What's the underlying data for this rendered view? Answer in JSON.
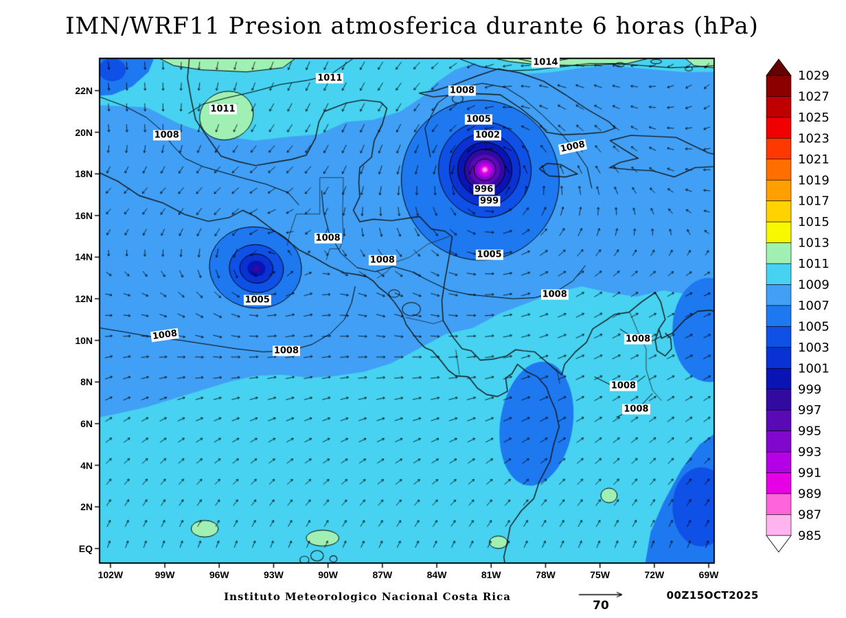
{
  "title": "IMN/WRF11 Presion atmosferica durante 6 horas (hPa)",
  "footer": {
    "institution": "Instituto Meteorologico Nacional Costa Rica",
    "wind_reference_label": "70",
    "valid_time": "00Z15OCT2025"
  },
  "axes": {
    "lat_ticks": [
      {
        "label": "EQ",
        "deg": 0
      },
      {
        "label": "2N",
        "deg": 2
      },
      {
        "label": "4N",
        "deg": 4
      },
      {
        "label": "6N",
        "deg": 6
      },
      {
        "label": "8N",
        "deg": 8
      },
      {
        "label": "10N",
        "deg": 10
      },
      {
        "label": "12N",
        "deg": 12
      },
      {
        "label": "14N",
        "deg": 14
      },
      {
        "label": "16N",
        "deg": 16
      },
      {
        "label": "18N",
        "deg": 18
      },
      {
        "label": "20N",
        "deg": 20
      },
      {
        "label": "22N",
        "deg": 22
      }
    ],
    "lon_ticks": [
      {
        "label": "102W",
        "deg": -102
      },
      {
        "label": "99W",
        "deg": -99
      },
      {
        "label": "96W",
        "deg": -96
      },
      {
        "label": "93W",
        "deg": -93
      },
      {
        "label": "90W",
        "deg": -90
      },
      {
        "label": "87W",
        "deg": -87
      },
      {
        "label": "84W",
        "deg": -84
      },
      {
        "label": "81W",
        "deg": -81
      },
      {
        "label": "78W",
        "deg": -78
      },
      {
        "label": "75W",
        "deg": -75
      },
      {
        "label": "72W",
        "deg": -72
      },
      {
        "label": "69W",
        "deg": -69
      }
    ]
  },
  "colorbar": {
    "units": "hPa",
    "levels": [
      1029,
      1027,
      1025,
      1023,
      1021,
      1019,
      1017,
      1015,
      1013,
      1011,
      1009,
      1007,
      1005,
      1003,
      1001,
      999,
      997,
      995,
      993,
      991,
      989,
      987,
      985
    ],
    "cell_colors_top_to_bottom": [
      "#8c0000",
      "#c00000",
      "#f00000",
      "#ff3800",
      "#ff6e00",
      "#ffa000",
      "#ffd200",
      "#f8f800",
      "#a0f0b4",
      "#46d2f0",
      "#41a0f5",
      "#1e78f0",
      "#0f50e6",
      "#0a32d2",
      "#0a14b4",
      "#320aa0",
      "#5a0ab4",
      "#8207cd",
      "#b400e6",
      "#e600e6",
      "#ff64dc",
      "#ffb4f0"
    ],
    "over_color": "#640000",
    "under_color": "#ffffff"
  },
  "chart_data": {
    "type": "heatmap",
    "title": "IMN/WRF11 Presion atmosferica durante 6 horas (hPa)",
    "variable": "Presion atmosferica",
    "units": "hPa",
    "valid_time": "00Z15OCT2025",
    "lon_range_deg_west": [
      102.6,
      68.7
    ],
    "lat_range_deg_north": [
      -0.7,
      23.55
    ],
    "shade_interval_hpa": 2,
    "shade_range_hpa": [
      985,
      1029
    ],
    "contour_interval_hpa": 3,
    "wind_reference_value": 70,
    "pressure_systems": [
      {
        "name": "hurricane-low-caribbean",
        "lon_w": 81.35,
        "lat_n": 18.2,
        "min_pressure_hpa": 986,
        "labeled_contours": [
          996,
          999,
          1002,
          1005,
          1008
        ]
      },
      {
        "name": "pacific-low",
        "lon_w": 93.95,
        "lat_n": 13.45,
        "min_pressure_hpa": 998,
        "labeled_contours": [
          1005,
          1008
        ]
      }
    ],
    "contour_labels": [
      {
        "text": "1011",
        "lon_w": 89.9,
        "lat_n": 22.6,
        "rot": 0
      },
      {
        "text": "1014",
        "lon_w": 78.0,
        "lat_n": 23.35,
        "rot": 0
      },
      {
        "text": "1008",
        "lon_w": 82.6,
        "lat_n": 22.0,
        "rot": 0
      },
      {
        "text": "1005",
        "lon_w": 81.7,
        "lat_n": 20.6,
        "rot": 0
      },
      {
        "text": "1002",
        "lon_w": 81.2,
        "lat_n": 19.85,
        "rot": 0
      },
      {
        "text": "1008",
        "lon_w": 76.5,
        "lat_n": 19.3,
        "rot": -12
      },
      {
        "text": "1011",
        "lon_w": 95.8,
        "lat_n": 21.1,
        "rot": 0
      },
      {
        "text": "1008",
        "lon_w": 98.9,
        "lat_n": 19.85,
        "rot": 0
      },
      {
        "text": "996",
        "lon_w": 81.4,
        "lat_n": 17.25,
        "rot": 0
      },
      {
        "text": "999",
        "lon_w": 81.1,
        "lat_n": 16.7,
        "rot": 0
      },
      {
        "text": "1008",
        "lon_w": 90.0,
        "lat_n": 14.9,
        "rot": 0
      },
      {
        "text": "1008",
        "lon_w": 87.0,
        "lat_n": 13.85,
        "rot": 0
      },
      {
        "text": "1005",
        "lon_w": 81.1,
        "lat_n": 14.1,
        "rot": 0
      },
      {
        "text": "1005",
        "lon_w": 93.9,
        "lat_n": 11.95,
        "rot": 0
      },
      {
        "text": "1008",
        "lon_w": 77.5,
        "lat_n": 12.2,
        "rot": 0
      },
      {
        "text": "1008",
        "lon_w": 99.0,
        "lat_n": 10.25,
        "rot": -8
      },
      {
        "text": "1008",
        "lon_w": 92.3,
        "lat_n": 9.5,
        "rot": 0
      },
      {
        "text": "1008",
        "lon_w": 72.9,
        "lat_n": 10.05,
        "rot": 0
      },
      {
        "text": "1008",
        "lon_w": 73.7,
        "lat_n": 7.8,
        "rot": 0
      },
      {
        "text": "1008",
        "lon_w": 73.0,
        "lat_n": 6.7,
        "rot": 0
      }
    ]
  }
}
